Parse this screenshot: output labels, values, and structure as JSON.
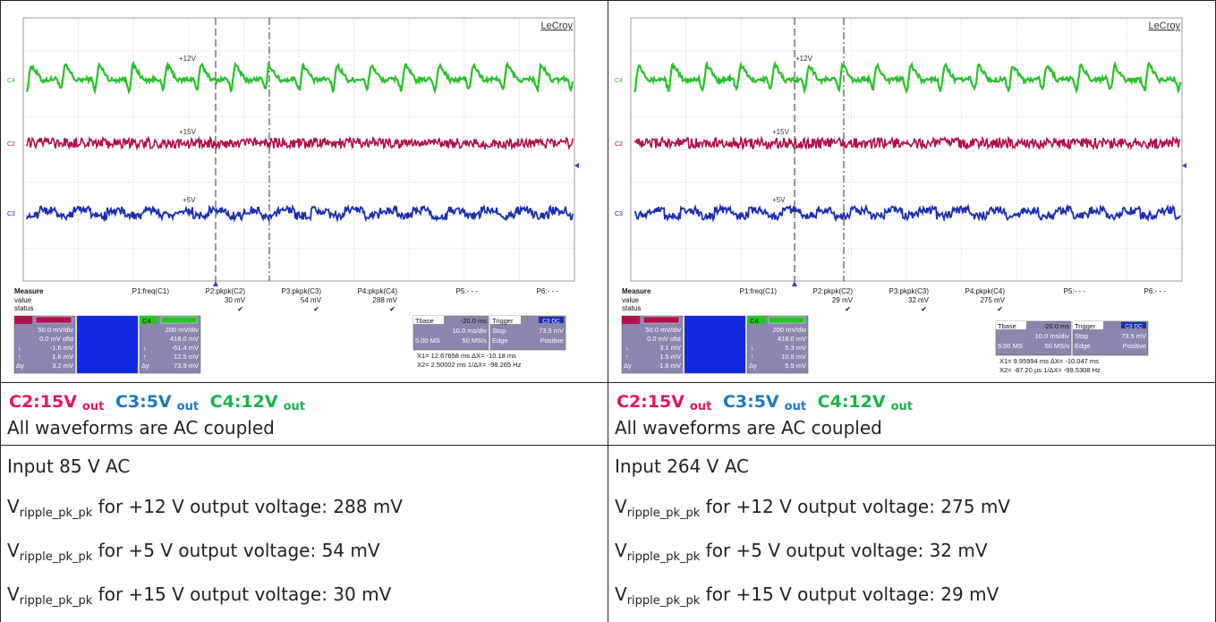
{
  "panels": [
    {
      "scope": {
        "brand": "LeCroy",
        "ch4_marker": "+12V",
        "ch2_marker": "+15V",
        "ch3_marker": "+5V",
        "measure_label": "Measure",
        "row_value": "value",
        "row_status": "status",
        "p1": "P1:freq(C1)",
        "p2": "P2:pkpk(C2)",
        "p3": "P3:pkpk(C3)",
        "p4": "P4:pkpk(C4)",
        "p5": "P5:- - -",
        "p6": "P6:- - -",
        "p2_value": "30 mV",
        "p3_value": "54 mV",
        "p4_value": "288 mV",
        "c2_lines": [
          "50.0 mV/div",
          "0.0 mV ofst",
          "-1.6 mV",
          "1.6 mV",
          "3.2 mV"
        ],
        "c4_label": "C4",
        "c4_lines": [
          "200 mV/div",
          "418.0 mV",
          "-61.4 mV",
          "12.5 mV",
          "73.9 mV"
        ],
        "delta_y": "Δy",
        "tbase_label": "Tbase",
        "tbase_value": "-20.0 ms",
        "trigger_label": "Trigger",
        "trigger_code": "C3 DC",
        "tdiv": "10.0 ms/div",
        "stop_label": "Stop",
        "trigger_level": "73.5 mV",
        "samples": "5.00 MS",
        "rate": "50 MS/s",
        "edge_label": "Edge",
        "slope": "Positive",
        "x1_line": "X1=  12.67658 ms    ΔX=  -10.18 ms",
        "x2_line": "X2=   2.50002 ms  1/ΔX= -98.265 Hz"
      },
      "legend": {
        "c2": "C2:15V",
        "c3": "C3:5V",
        "c4": "C4:12V",
        "sub": "out"
      },
      "coupling": "All waveforms are AC coupled",
      "input": "Input 85 V AC",
      "v_main": "V",
      "v_sub": "ripple_pk_pk",
      "lines": [
        " for +12 V output voltage: 288 mV",
        " for +5 V output voltage: 54 mV",
        " for +15 V output voltage: 30 mV"
      ]
    },
    {
      "scope": {
        "brand": "LeCroy",
        "ch4_marker": "+12V",
        "ch2_marker": "+15V",
        "ch3_marker": "+5V",
        "measure_label": "Measure",
        "row_value": "value",
        "row_status": "status",
        "p1": "P1:freq(C1)",
        "p2": "P2:pkpk(C2)",
        "p3": "P3:pkpk(C3)",
        "p4": "P4:pkpk(C4)",
        "p5": "P5:- - -",
        "p6": "P6:- - -",
        "p2_value": "29 mV",
        "p3_value": "32 mV",
        "p4_value": "275 mV",
        "c2_lines": [
          "50.0 mV/div",
          "0.0 mV ofst",
          "3.1 mV",
          "1.5 mV",
          "-1.6 mV"
        ],
        "c4_label": "C4",
        "c4_lines": [
          "200 mV/div",
          "418.0 mV",
          "5.3 mV",
          "10.8 mV",
          "5.5 mV"
        ],
        "delta_y": "Δy",
        "tbase_label": "Tbase",
        "tbase_value": "-20.0 ms",
        "trigger_label": "Trigger",
        "trigger_code": "C3 DC",
        "tdiv": "10.0 ms/div",
        "stop_label": "Stop",
        "trigger_level": "73.5 mV",
        "samples": "5.00 MS",
        "rate": "50 MS/s",
        "edge_label": "Edge",
        "slope": "Positive",
        "x1_line": "X1=  9.95994 ms    ΔX=  -10.047 ms",
        "x2_line": "X2=   -87.20 µs  1/ΔX= -99.5308 Hz"
      },
      "legend": {
        "c2": "C2:15V",
        "c3": "C3:5V",
        "c4": "C4:12V",
        "sub": "out"
      },
      "coupling": "All waveforms are AC coupled",
      "input": "Input 264 V AC",
      "v_main": "V",
      "v_sub": "ripple_pk_pk",
      "lines": [
        " for +12 V output voltage: 275 mV",
        " for +5 V output voltage: 32 mV",
        " for +15 V output voltage: 29 mV"
      ]
    }
  ],
  "colors": {
    "c2": "#b0104f",
    "c3": "#1a2fb0",
    "c4": "#28c228",
    "legend_c2": "#e4165e",
    "legend_c3": "#1a78c8",
    "legend_c4": "#17b444"
  }
}
